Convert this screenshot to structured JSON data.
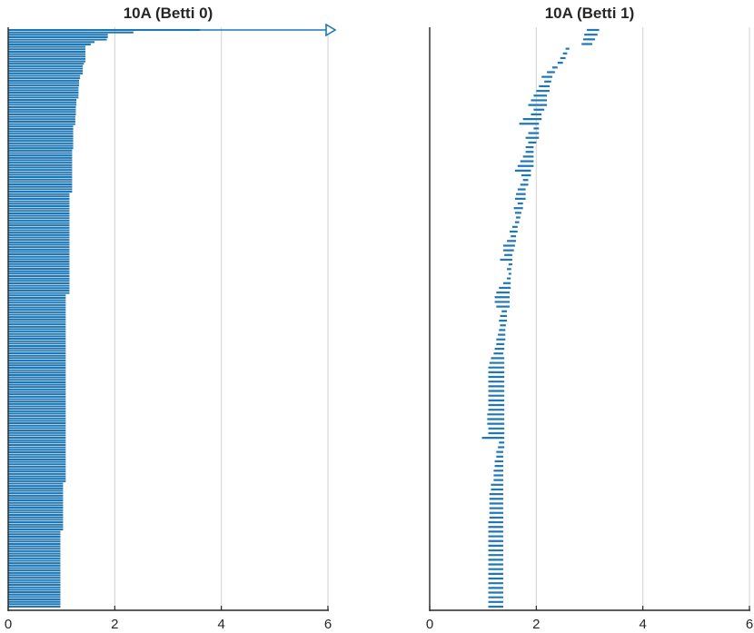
{
  "accent_color": "#1f77b4",
  "chart_data": [
    {
      "type": "barcode",
      "title": "10A (Betti 0)",
      "xlim": [
        0,
        6
      ],
      "xticks": [
        0,
        2,
        4,
        6
      ],
      "grid": true,
      "infinite_bar": {
        "start": 0,
        "arrow": true
      },
      "intervals": [
        [
          0,
          3.6
        ],
        [
          0,
          2.35
        ],
        [
          0,
          1.87
        ],
        [
          0,
          1.87
        ],
        [
          0,
          1.85
        ],
        [
          0,
          1.62
        ],
        [
          0,
          1.55
        ],
        [
          0,
          1.45
        ],
        [
          0,
          1.45
        ],
        [
          0,
          1.45
        ],
        [
          0,
          1.45
        ],
        [
          0,
          1.45
        ],
        [
          0,
          1.45
        ],
        [
          0,
          1.45
        ],
        [
          0,
          1.42
        ],
        [
          0,
          1.4
        ],
        [
          0,
          1.4
        ],
        [
          0,
          1.4
        ],
        [
          0,
          1.4
        ],
        [
          0,
          1.35
        ],
        [
          0,
          1.35
        ],
        [
          0,
          1.33
        ],
        [
          0,
          1.33
        ],
        [
          0,
          1.33
        ],
        [
          0,
          1.32
        ],
        [
          0,
          1.32
        ],
        [
          0,
          1.32
        ],
        [
          0,
          1.32
        ],
        [
          0,
          1.32
        ],
        [
          0,
          1.28
        ],
        [
          0,
          1.28
        ],
        [
          0,
          1.28
        ],
        [
          0,
          1.27
        ],
        [
          0,
          1.27
        ],
        [
          0,
          1.27
        ],
        [
          0,
          1.27
        ],
        [
          0,
          1.26
        ],
        [
          0,
          1.26
        ],
        [
          0,
          1.26
        ],
        [
          0,
          1.26
        ],
        [
          0,
          1.22
        ],
        [
          0,
          1.22
        ],
        [
          0,
          1.22
        ],
        [
          0,
          1.22
        ],
        [
          0,
          1.22
        ],
        [
          0,
          1.22
        ],
        [
          0,
          1.22
        ],
        [
          0,
          1.22
        ],
        [
          0,
          1.22
        ],
        [
          0,
          1.22
        ],
        [
          0,
          1.2
        ],
        [
          0,
          1.2
        ],
        [
          0,
          1.2
        ],
        [
          0,
          1.2
        ],
        [
          0,
          1.2
        ],
        [
          0,
          1.2
        ],
        [
          0,
          1.2
        ],
        [
          0,
          1.2
        ],
        [
          0,
          1.2
        ],
        [
          0,
          1.2
        ],
        [
          0,
          1.2
        ],
        [
          0,
          1.2
        ],
        [
          0,
          1.2
        ],
        [
          0,
          1.2
        ],
        [
          0,
          1.2
        ],
        [
          0,
          1.2
        ],
        [
          0,
          1.2
        ],
        [
          0,
          1.2
        ],
        [
          0,
          1.15
        ],
        [
          0,
          1.15
        ],
        [
          0,
          1.15
        ],
        [
          0,
          1.15
        ],
        [
          0,
          1.15
        ],
        [
          0,
          1.15
        ],
        [
          0,
          1.15
        ],
        [
          0,
          1.15
        ],
        [
          0,
          1.15
        ],
        [
          0,
          1.15
        ],
        [
          0,
          1.15
        ],
        [
          0,
          1.15
        ],
        [
          0,
          1.15
        ],
        [
          0,
          1.15
        ],
        [
          0,
          1.15
        ],
        [
          0,
          1.15
        ],
        [
          0,
          1.15
        ],
        [
          0,
          1.15
        ],
        [
          0,
          1.15
        ],
        [
          0,
          1.15
        ],
        [
          0,
          1.15
        ],
        [
          0,
          1.15
        ],
        [
          0,
          1.15
        ],
        [
          0,
          1.15
        ],
        [
          0,
          1.15
        ],
        [
          0,
          1.15
        ],
        [
          0,
          1.15
        ],
        [
          0,
          1.15
        ],
        [
          0,
          1.15
        ],
        [
          0,
          1.15
        ],
        [
          0,
          1.15
        ],
        [
          0,
          1.15
        ],
        [
          0,
          1.15
        ],
        [
          0,
          1.15
        ],
        [
          0,
          1.15
        ],
        [
          0,
          1.15
        ],
        [
          0,
          1.15
        ],
        [
          0,
          1.15
        ],
        [
          0,
          1.15
        ],
        [
          0,
          1.15
        ],
        [
          0,
          1.15
        ],
        [
          0,
          1.15
        ],
        [
          0,
          1.08
        ],
        [
          0,
          1.08
        ],
        [
          0,
          1.08
        ],
        [
          0,
          1.08
        ],
        [
          0,
          1.08
        ],
        [
          0,
          1.08
        ],
        [
          0,
          1.08
        ],
        [
          0,
          1.08
        ],
        [
          0,
          1.08
        ],
        [
          0,
          1.08
        ],
        [
          0,
          1.08
        ],
        [
          0,
          1.08
        ],
        [
          0,
          1.08
        ],
        [
          0,
          1.08
        ],
        [
          0,
          1.08
        ],
        [
          0,
          1.08
        ],
        [
          0,
          1.08
        ],
        [
          0,
          1.08
        ],
        [
          0,
          1.08
        ],
        [
          0,
          1.08
        ],
        [
          0,
          1.08
        ],
        [
          0,
          1.08
        ],
        [
          0,
          1.08
        ],
        [
          0,
          1.08
        ],
        [
          0,
          1.08
        ],
        [
          0,
          1.08
        ],
        [
          0,
          1.08
        ],
        [
          0,
          1.08
        ],
        [
          0,
          1.08
        ],
        [
          0,
          1.08
        ],
        [
          0,
          1.08
        ],
        [
          0,
          1.08
        ],
        [
          0,
          1.08
        ],
        [
          0,
          1.08
        ],
        [
          0,
          1.08
        ],
        [
          0,
          1.08
        ],
        [
          0,
          1.08
        ],
        [
          0,
          1.08
        ],
        [
          0,
          1.08
        ],
        [
          0,
          1.08
        ],
        [
          0,
          1.08
        ],
        [
          0,
          1.08
        ],
        [
          0,
          1.08
        ],
        [
          0,
          1.08
        ],
        [
          0,
          1.08
        ],
        [
          0,
          1.08
        ],
        [
          0,
          1.08
        ],
        [
          0,
          1.08
        ],
        [
          0,
          1.08
        ],
        [
          0,
          1.08
        ],
        [
          0,
          1.08
        ],
        [
          0,
          1.08
        ],
        [
          0,
          1.08
        ],
        [
          0,
          1.08
        ],
        [
          0,
          1.08
        ],
        [
          0,
          1.08
        ],
        [
          0,
          1.08
        ],
        [
          0,
          1.08
        ],
        [
          0,
          1.08
        ],
        [
          0,
          1.08
        ],
        [
          0,
          1.08
        ],
        [
          0,
          1.08
        ],
        [
          0,
          1.08
        ],
        [
          0,
          1.08
        ],
        [
          0,
          1.08
        ],
        [
          0,
          1.08
        ],
        [
          0,
          1.08
        ],
        [
          0,
          1.08
        ],
        [
          0,
          1.08
        ],
        [
          0,
          1.08
        ],
        [
          0,
          1.08
        ],
        [
          0,
          1.08
        ],
        [
          0,
          1.08
        ],
        [
          0,
          1.08
        ],
        [
          0,
          1.08
        ],
        [
          0,
          1.08
        ],
        [
          0,
          1.08
        ],
        [
          0,
          1.08
        ],
        [
          0,
          1.03
        ],
        [
          0,
          1.03
        ],
        [
          0,
          1.03
        ],
        [
          0,
          1.03
        ],
        [
          0,
          1.03
        ],
        [
          0,
          1.03
        ],
        [
          0,
          1.03
        ],
        [
          0,
          1.03
        ],
        [
          0,
          1.03
        ],
        [
          0,
          1.03
        ],
        [
          0,
          1.03
        ],
        [
          0,
          1.03
        ],
        [
          0,
          1.03
        ],
        [
          0,
          1.03
        ],
        [
          0,
          1.03
        ],
        [
          0,
          1.03
        ],
        [
          0,
          1.03
        ],
        [
          0,
          1.03
        ],
        [
          0,
          1.03
        ],
        [
          0,
          1.03
        ],
        [
          0,
          0.98
        ],
        [
          0,
          0.98
        ],
        [
          0,
          0.98
        ],
        [
          0,
          0.98
        ],
        [
          0,
          0.98
        ],
        [
          0,
          0.98
        ],
        [
          0,
          0.98
        ],
        [
          0,
          0.98
        ],
        [
          0,
          0.98
        ],
        [
          0,
          0.98
        ],
        [
          0,
          0.98
        ],
        [
          0,
          0.98
        ],
        [
          0,
          0.98
        ],
        [
          0,
          0.98
        ],
        [
          0,
          0.98
        ],
        [
          0,
          0.98
        ],
        [
          0,
          0.98
        ],
        [
          0,
          0.98
        ],
        [
          0,
          0.98
        ],
        [
          0,
          0.98
        ],
        [
          0,
          0.98
        ],
        [
          0,
          0.98
        ],
        [
          0,
          0.98
        ],
        [
          0,
          0.98
        ],
        [
          0,
          0.98
        ],
        [
          0,
          0.98
        ],
        [
          0,
          0.98
        ],
        [
          0,
          0.98
        ],
        [
          0,
          0.98
        ],
        [
          0,
          0.98
        ],
        [
          0,
          0.98
        ],
        [
          0,
          0.98
        ]
      ]
    },
    {
      "type": "barcode",
      "title": "10A (Betti 1)",
      "xlim": [
        0,
        6
      ],
      "xticks": [
        0,
        2,
        4,
        6
      ],
      "grid": true,
      "intervals": [
        [
          2.95,
          3.18
        ],
        [
          2.9,
          3.15
        ],
        [
          2.88,
          3.1
        ],
        [
          2.85,
          3.05
        ],
        [
          2.55,
          2.62
        ],
        [
          2.5,
          2.58
        ],
        [
          2.45,
          2.55
        ],
        [
          2.4,
          2.5
        ],
        [
          2.3,
          2.4
        ],
        [
          2.2,
          2.35
        ],
        [
          2.1,
          2.3
        ],
        [
          2.15,
          2.28
        ],
        [
          2.05,
          2.25
        ],
        [
          2.0,
          2.25
        ],
        [
          1.95,
          2.2
        ],
        [
          1.9,
          2.2
        ],
        [
          1.85,
          2.2
        ],
        [
          1.95,
          2.15
        ],
        [
          1.9,
          2.1
        ],
        [
          1.75,
          2.1
        ],
        [
          1.68,
          2.05
        ],
        [
          1.95,
          2.05
        ],
        [
          1.85,
          2.05
        ],
        [
          1.8,
          2.05
        ],
        [
          1.85,
          2.0
        ],
        [
          1.8,
          1.95
        ],
        [
          1.8,
          1.95
        ],
        [
          1.75,
          1.95
        ],
        [
          1.7,
          1.95
        ],
        [
          1.65,
          1.95
        ],
        [
          1.6,
          1.9
        ],
        [
          1.72,
          1.9
        ],
        [
          1.75,
          1.85
        ],
        [
          1.7,
          1.85
        ],
        [
          1.65,
          1.8
        ],
        [
          1.62,
          1.8
        ],
        [
          1.6,
          1.8
        ],
        [
          1.65,
          1.75
        ],
        [
          1.58,
          1.75
        ],
        [
          1.6,
          1.72
        ],
        [
          1.62,
          1.7
        ],
        [
          1.6,
          1.68
        ],
        [
          1.55,
          1.65
        ],
        [
          1.5,
          1.65
        ],
        [
          1.52,
          1.62
        ],
        [
          1.45,
          1.62
        ],
        [
          1.38,
          1.6
        ],
        [
          1.38,
          1.58
        ],
        [
          1.4,
          1.55
        ],
        [
          1.32,
          1.55
        ],
        [
          1.48,
          1.55
        ],
        [
          1.45,
          1.53
        ],
        [
          1.48,
          1.53
        ],
        [
          1.45,
          1.52
        ],
        [
          1.38,
          1.52
        ],
        [
          1.3,
          1.52
        ],
        [
          1.25,
          1.5
        ],
        [
          1.22,
          1.5
        ],
        [
          1.22,
          1.5
        ],
        [
          1.25,
          1.5
        ],
        [
          1.35,
          1.45
        ],
        [
          1.32,
          1.45
        ],
        [
          1.3,
          1.45
        ],
        [
          1.32,
          1.43
        ],
        [
          1.3,
          1.42
        ],
        [
          1.28,
          1.42
        ],
        [
          1.25,
          1.42
        ],
        [
          1.25,
          1.4
        ],
        [
          1.22,
          1.4
        ],
        [
          1.2,
          1.38
        ],
        [
          1.15,
          1.4
        ],
        [
          1.12,
          1.4
        ],
        [
          1.1,
          1.4
        ],
        [
          1.1,
          1.4
        ],
        [
          1.1,
          1.4
        ],
        [
          1.1,
          1.4
        ],
        [
          1.1,
          1.4
        ],
        [
          1.1,
          1.4
        ],
        [
          1.1,
          1.4
        ],
        [
          1.1,
          1.4
        ],
        [
          1.1,
          1.4
        ],
        [
          1.1,
          1.4
        ],
        [
          1.08,
          1.4
        ],
        [
          1.08,
          1.4
        ],
        [
          1.08,
          1.4
        ],
        [
          1.1,
          1.4
        ],
        [
          1.1,
          1.4
        ],
        [
          0.98,
          1.4
        ],
        [
          1.3,
          1.4
        ],
        [
          1.28,
          1.4
        ],
        [
          1.25,
          1.38
        ],
        [
          1.25,
          1.38
        ],
        [
          1.22,
          1.38
        ],
        [
          1.22,
          1.38
        ],
        [
          1.2,
          1.38
        ],
        [
          1.2,
          1.38
        ],
        [
          1.2,
          1.38
        ],
        [
          1.15,
          1.38
        ],
        [
          1.15,
          1.38
        ],
        [
          1.12,
          1.38
        ],
        [
          1.12,
          1.38
        ],
        [
          1.12,
          1.38
        ],
        [
          1.12,
          1.38
        ],
        [
          1.12,
          1.38
        ],
        [
          1.12,
          1.38
        ],
        [
          1.1,
          1.38
        ],
        [
          1.1,
          1.38
        ],
        [
          1.1,
          1.38
        ],
        [
          1.1,
          1.38
        ],
        [
          1.1,
          1.38
        ],
        [
          1.1,
          1.38
        ],
        [
          1.1,
          1.38
        ],
        [
          1.1,
          1.38
        ],
        [
          1.1,
          1.38
        ],
        [
          1.1,
          1.38
        ],
        [
          1.1,
          1.38
        ],
        [
          1.1,
          1.38
        ],
        [
          1.1,
          1.38
        ],
        [
          1.1,
          1.38
        ],
        [
          1.1,
          1.38
        ],
        [
          1.1,
          1.38
        ],
        [
          1.1,
          1.38
        ],
        [
          1.1,
          1.38
        ],
        [
          1.1,
          1.38
        ]
      ]
    }
  ]
}
